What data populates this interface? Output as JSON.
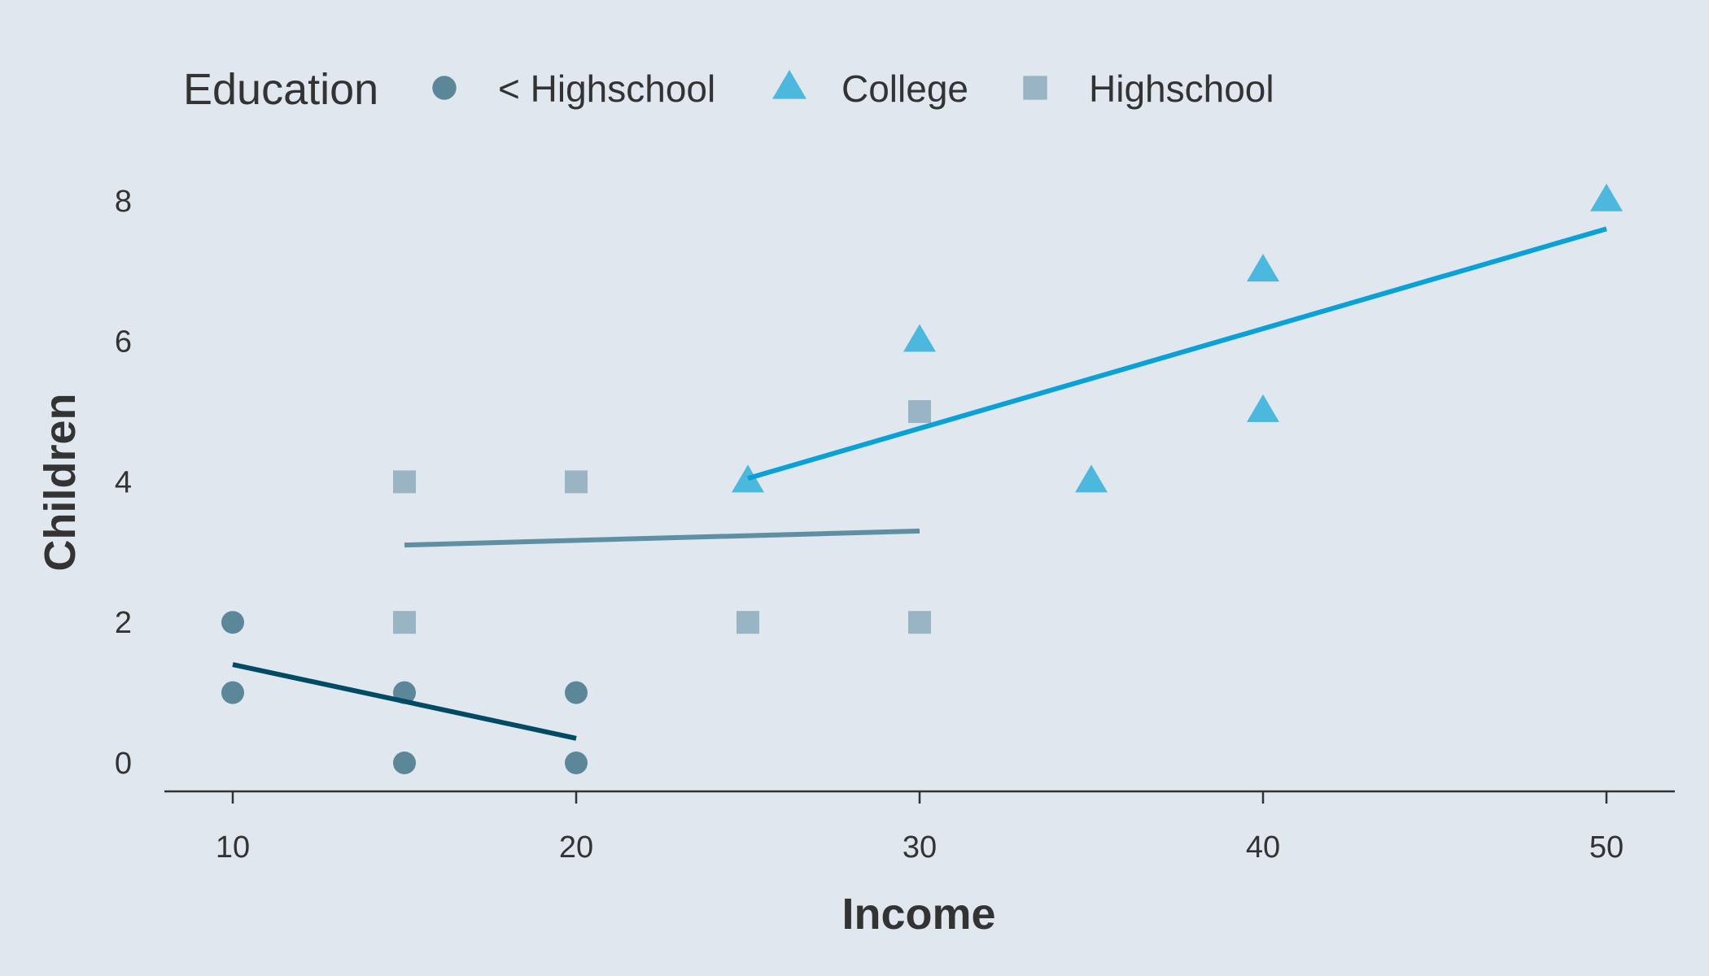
{
  "chart_data": {
    "type": "scatter",
    "xlabel": "Income",
    "ylabel": "Children",
    "xlim": [
      8,
      52
    ],
    "ylim": [
      -0.4,
      8.8
    ],
    "xticks": [
      10,
      20,
      30,
      40,
      50
    ],
    "yticks": [
      0,
      2,
      4,
      6,
      8
    ],
    "grid": false,
    "legend": {
      "title": "Education",
      "placement": "top",
      "entries": [
        "< Highschool",
        "College",
        "Highschool"
      ]
    },
    "series": [
      {
        "name": "< Highschool",
        "marker": "circle",
        "color": "#5b8799",
        "line_color": "#004a66",
        "points": [
          [
            10,
            2
          ],
          [
            10,
            1
          ],
          [
            15,
            1
          ],
          [
            15,
            0
          ],
          [
            20,
            1
          ],
          [
            20,
            0
          ]
        ],
        "fit_line": [
          [
            10,
            1.4
          ],
          [
            20,
            0.35
          ]
        ]
      },
      {
        "name": "College",
        "marker": "triangle",
        "color": "#4db8de",
        "line_color": "#0aa0d8",
        "points": [
          [
            25,
            4
          ],
          [
            30,
            6
          ],
          [
            35,
            4
          ],
          [
            40,
            7
          ],
          [
            40,
            5
          ],
          [
            50,
            8
          ]
        ],
        "fit_line": [
          [
            25,
            4.05
          ],
          [
            50,
            7.6
          ]
        ]
      },
      {
        "name": "Highschool",
        "marker": "square",
        "color": "#99b5c3",
        "line_color": "#5f8fa3",
        "points": [
          [
            15,
            4
          ],
          [
            15,
            2
          ],
          [
            20,
            4
          ],
          [
            25,
            2
          ],
          [
            30,
            5
          ],
          [
            30,
            2
          ]
        ],
        "fit_line": [
          [
            15,
            3.1
          ],
          [
            30,
            3.3
          ]
        ]
      }
    ]
  }
}
